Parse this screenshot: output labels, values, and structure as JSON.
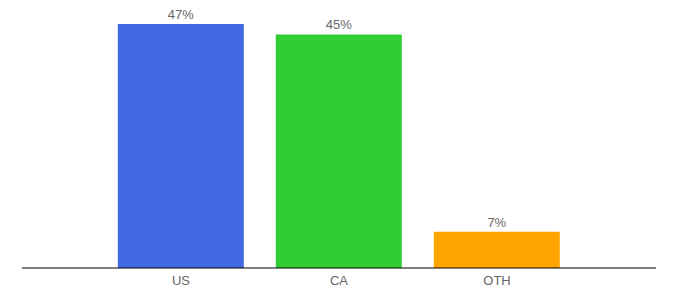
{
  "chart_data": {
    "type": "bar",
    "categories": [
      "US",
      "CA",
      "OTH"
    ],
    "values": [
      47,
      45,
      7
    ],
    "value_labels": [
      "47%",
      "45%",
      "7%"
    ],
    "colors": [
      "#4169e1",
      "#32cd32",
      "#ffa500"
    ],
    "data_labels": true,
    "tick_labels": "x",
    "grid": false
  }
}
